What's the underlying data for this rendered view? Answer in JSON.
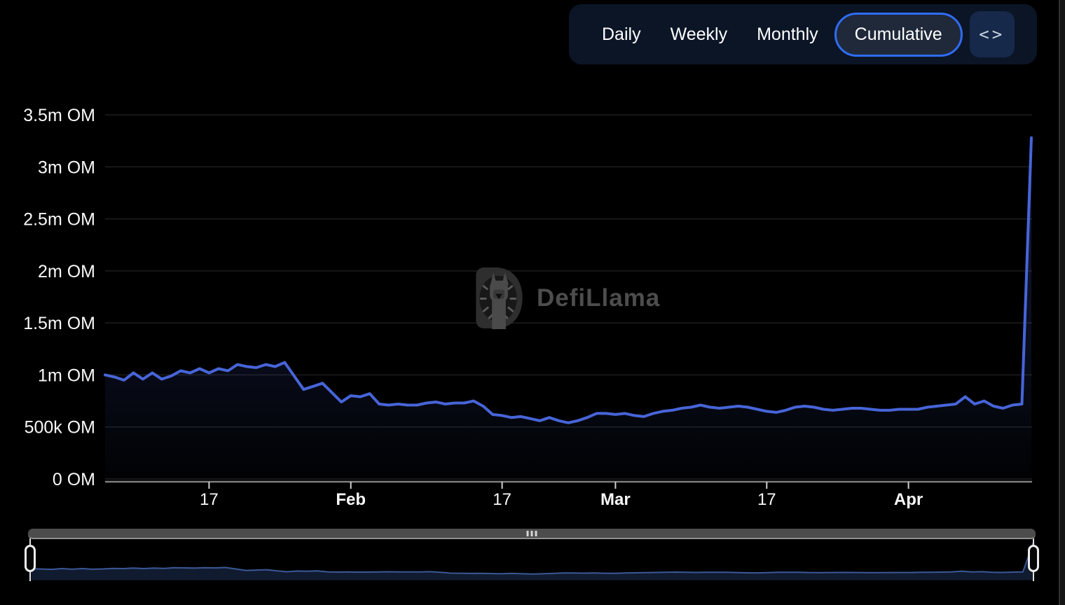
{
  "toolbar": {
    "items": [
      {
        "label": "Daily",
        "active": false
      },
      {
        "label": "Weekly",
        "active": false
      },
      {
        "label": "Monthly",
        "active": false
      },
      {
        "label": "Cumulative",
        "active": true
      }
    ],
    "code_icon": "<>"
  },
  "watermark": {
    "brand": "DefiLlama"
  },
  "colors": {
    "background": "#000000",
    "toolbar_bg": "#0b1526",
    "active_pill_bg": "#20293a",
    "active_pill_border": "#2f6df5",
    "code_button_bg": "#16294a",
    "line": "#4765d9",
    "grid": "#1e1e1e",
    "axis": "#7e7e7e",
    "tick": "#cfcfcf",
    "label": "#f8f8f8",
    "watermark": "#4d4d4d",
    "brush_track": "#4c4c4c",
    "brush_handle": "#ececec",
    "mini_line": "#3b5897",
    "mini_fill": "#111b30"
  },
  "chart_data": {
    "type": "area",
    "unit": "OM",
    "grid": true,
    "legend": false,
    "ylim_m_om": [
      0,
      3.5
    ],
    "y_tick_labels": [
      "3.5m OM",
      "3m OM",
      "2.5m OM",
      "2m OM",
      "1.5m OM",
      "1m OM",
      "500k OM",
      "0 OM"
    ],
    "y_tick_values_m": [
      3.5,
      3,
      2.5,
      2,
      1.5,
      1,
      0.5,
      0
    ],
    "x_ticks": [
      {
        "label": "17",
        "day": 11,
        "bold": false
      },
      {
        "label": "Feb",
        "day": 26,
        "bold": true
      },
      {
        "label": "17",
        "day": 42,
        "bold": false
      },
      {
        "label": "Mar",
        "day": 54,
        "bold": true
      },
      {
        "label": "17",
        "day": 70,
        "bold": false
      },
      {
        "label": "Apr",
        "day": 85,
        "bold": true
      }
    ],
    "series": [
      {
        "name": "Cumulative",
        "values_m_om": [
          1.0,
          0.98,
          0.95,
          1.02,
          0.96,
          1.02,
          0.96,
          0.99,
          1.04,
          1.02,
          1.06,
          1.02,
          1.06,
          1.04,
          1.1,
          1.08,
          1.07,
          1.1,
          1.08,
          1.12,
          0.99,
          0.86,
          0.89,
          0.92,
          0.83,
          0.74,
          0.8,
          0.79,
          0.82,
          0.72,
          0.71,
          0.72,
          0.71,
          0.71,
          0.73,
          0.74,
          0.72,
          0.73,
          0.73,
          0.75,
          0.7,
          0.62,
          0.61,
          0.59,
          0.6,
          0.58,
          0.56,
          0.59,
          0.56,
          0.54,
          0.56,
          0.59,
          0.63,
          0.63,
          0.62,
          0.63,
          0.61,
          0.6,
          0.63,
          0.65,
          0.66,
          0.68,
          0.69,
          0.71,
          0.69,
          0.68,
          0.69,
          0.7,
          0.69,
          0.67,
          0.65,
          0.64,
          0.66,
          0.69,
          0.7,
          0.69,
          0.67,
          0.66,
          0.67,
          0.68,
          0.68,
          0.67,
          0.66,
          0.66,
          0.67,
          0.67,
          0.67,
          0.69,
          0.7,
          0.71,
          0.72,
          0.79,
          0.72,
          0.75,
          0.7,
          0.68,
          0.71,
          0.72,
          3.28
        ],
        "final_value_m_om": 3.28
      }
    ]
  }
}
